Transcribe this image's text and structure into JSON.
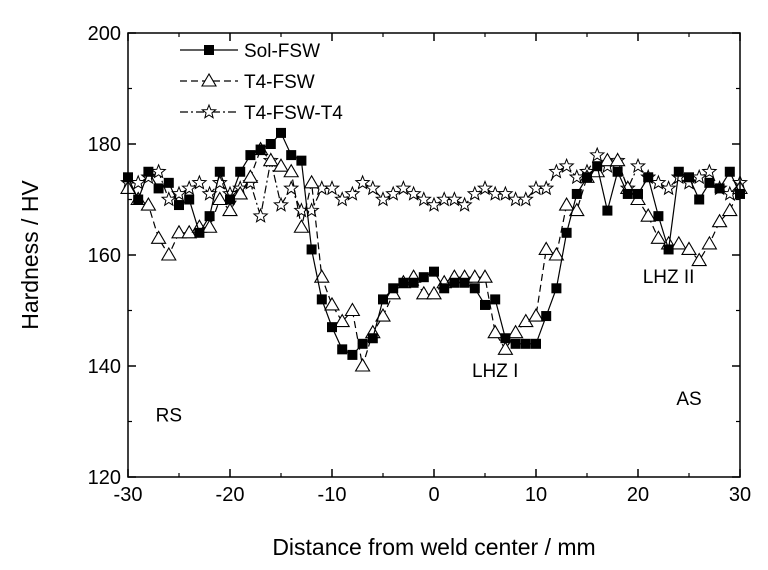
{
  "chart_data": {
    "type": "line",
    "xlabel": "Distance from weld center / mm",
    "ylabel": "Hardness / HV",
    "xlim": [
      -30,
      30
    ],
    "ylim": [
      120,
      200
    ],
    "xticks": [
      -30,
      -20,
      -10,
      0,
      10,
      20,
      30
    ],
    "yticks": [
      120,
      140,
      160,
      180,
      200
    ],
    "xtick_labels": [
      "-30",
      "-20",
      "-10",
      "0",
      "10",
      "20",
      "30"
    ],
    "ytick_labels": [
      "120",
      "140",
      "160",
      "180",
      "200"
    ],
    "grid": false,
    "legend_position": "top-left",
    "annotations": [
      {
        "text": "RS",
        "x": -26,
        "y": 130
      },
      {
        "text": "LHZ I",
        "x": 6,
        "y": 138
      },
      {
        "text": "LHZ II",
        "x": 23,
        "y": 155
      },
      {
        "text": "AS",
        "x": 25,
        "y": 133
      }
    ],
    "series": [
      {
        "name": "Sol-FSW",
        "marker": "filled-square",
        "line_style": "solid",
        "x": [
          -30,
          -29,
          -28,
          -27,
          -26,
          -25,
          -24,
          -23,
          -22,
          -21,
          -20,
          -19,
          -18,
          -17,
          -16,
          -15,
          -14,
          -13,
          -12,
          -11,
          -10,
          -9,
          -8,
          -7,
          -6,
          -5,
          -4,
          -3,
          -2,
          -1,
          0,
          1,
          2,
          3,
          4,
          5,
          6,
          7,
          8,
          9,
          10,
          11,
          12,
          13,
          14,
          15,
          16,
          17,
          18,
          19,
          20,
          21,
          22,
          23,
          24,
          25,
          26,
          27,
          28,
          29,
          30
        ],
        "y": [
          174,
          170,
          175,
          172,
          173,
          169,
          170,
          164,
          167,
          175,
          170,
          175,
          178,
          179,
          180,
          182,
          178,
          177,
          161,
          152,
          147,
          143,
          142,
          144,
          145,
          152,
          154,
          155,
          155,
          156,
          157,
          154,
          155,
          155,
          154,
          151,
          152,
          145,
          144,
          144,
          144,
          149,
          154,
          164,
          171,
          174,
          176,
          168,
          175,
          171,
          171,
          174,
          167,
          161,
          175,
          174,
          170,
          173,
          172,
          175,
          171
        ]
      },
      {
        "name": "T4-FSW",
        "marker": "open-triangle",
        "line_style": "dash",
        "x": [
          -30,
          -29,
          -28,
          -27,
          -26,
          -25,
          -24,
          -23,
          -22,
          -21,
          -20,
          -19,
          -18,
          -17,
          -16,
          -15,
          -14,
          -13,
          -12,
          -11,
          -10,
          -9,
          -8,
          -7,
          -6,
          -5,
          -4,
          -3,
          -2,
          -1,
          0,
          1,
          2,
          3,
          4,
          5,
          6,
          7,
          8,
          9,
          10,
          11,
          12,
          13,
          14,
          15,
          16,
          17,
          18,
          19,
          20,
          21,
          22,
          23,
          24,
          25,
          26,
          27,
          28,
          29,
          30
        ],
        "y": [
          172,
          170,
          169,
          163,
          160,
          164,
          164,
          165,
          165,
          170,
          168,
          171,
          174,
          179,
          177,
          176,
          175,
          165,
          173,
          156,
          151,
          148,
          150,
          140,
          146,
          149,
          153,
          155,
          156,
          153,
          153,
          155,
          156,
          156,
          156,
          156,
          146,
          143,
          146,
          148,
          149,
          161,
          160,
          169,
          168,
          174,
          175,
          177,
          177,
          172,
          170,
          167,
          163,
          162,
          162,
          161,
          159,
          162,
          166,
          168,
          172
        ]
      },
      {
        "name": "T4-FSW-T4",
        "marker": "open-star",
        "line_style": "dash-dot",
        "x": [
          -30,
          -29,
          -28,
          -27,
          -26,
          -25,
          -24,
          -23,
          -22,
          -21,
          -20,
          -19,
          -18,
          -17,
          -16,
          -15,
          -14,
          -13,
          -12,
          -11,
          -10,
          -9,
          -8,
          -7,
          -6,
          -5,
          -4,
          -3,
          -2,
          -1,
          0,
          1,
          2,
          3,
          4,
          5,
          6,
          7,
          8,
          9,
          10,
          11,
          12,
          13,
          14,
          15,
          16,
          17,
          18,
          19,
          20,
          21,
          22,
          23,
          24,
          25,
          26,
          27,
          28,
          29,
          30
        ],
        "y": [
          173,
          173,
          174,
          175,
          170,
          171,
          172,
          173,
          171,
          173,
          171,
          172,
          173,
          167,
          177,
          169,
          172,
          168,
          168,
          172,
          172,
          170,
          171,
          173,
          172,
          170,
          171,
          172,
          171,
          170,
          169,
          170,
          170,
          169,
          171,
          172,
          171,
          171,
          170,
          170,
          172,
          172,
          175,
          176,
          174,
          175,
          178,
          176,
          177,
          172,
          176,
          174,
          173,
          172,
          174,
          173,
          174,
          175,
          172,
          171,
          173
        ]
      }
    ]
  }
}
